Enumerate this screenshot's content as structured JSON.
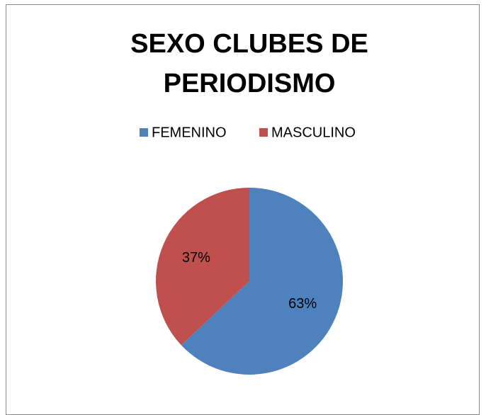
{
  "chart_data": {
    "type": "pie",
    "title": "SEXO CLUBES DE PERIODISMO",
    "categories": [
      "FEMENINO",
      "MASCULINO"
    ],
    "values": [
      63,
      37
    ],
    "value_labels": [
      "63%",
      "37%"
    ],
    "colors": [
      "#4f81bd",
      "#c0504d"
    ],
    "legend": "top"
  }
}
